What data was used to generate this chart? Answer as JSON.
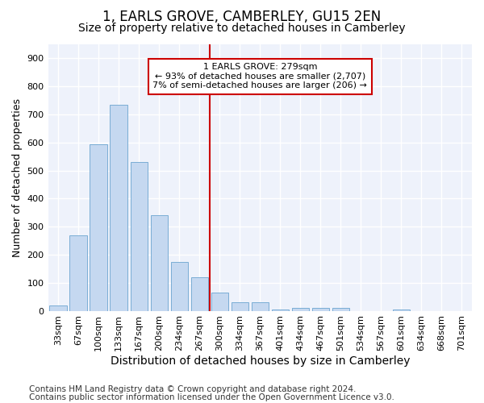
{
  "title": "1, EARLS GROVE, CAMBERLEY, GU15 2EN",
  "subtitle": "Size of property relative to detached houses in Camberley",
  "xlabel": "Distribution of detached houses by size in Camberley",
  "ylabel": "Number of detached properties",
  "categories": [
    "33sqm",
    "67sqm",
    "100sqm",
    "133sqm",
    "167sqm",
    "200sqm",
    "234sqm",
    "267sqm",
    "300sqm",
    "334sqm",
    "367sqm",
    "401sqm",
    "434sqm",
    "467sqm",
    "501sqm",
    "534sqm",
    "567sqm",
    "601sqm",
    "634sqm",
    "668sqm",
    "701sqm"
  ],
  "values": [
    18,
    270,
    595,
    735,
    530,
    340,
    175,
    120,
    65,
    30,
    30,
    5,
    10,
    10,
    10,
    0,
    0,
    5,
    0,
    0,
    0
  ],
  "bar_color": "#c5d8f0",
  "bar_edge_color": "#7aadd4",
  "vline_x_index": 7.5,
  "vline_color": "#cc0000",
  "annotation_line1": "1 EARLS GROVE: 279sqm",
  "annotation_line2": "← 93% of detached houses are smaller (2,707)",
  "annotation_line3": "7% of semi-detached houses are larger (206) →",
  "annotation_box_facecolor": "#ffffff",
  "annotation_box_edgecolor": "#cc0000",
  "ylim": [
    0,
    950
  ],
  "yticks": [
    0,
    100,
    200,
    300,
    400,
    500,
    600,
    700,
    800,
    900
  ],
  "footer1": "Contains HM Land Registry data © Crown copyright and database right 2024.",
  "footer2": "Contains public sector information licensed under the Open Government Licence v3.0.",
  "bg_color": "#ffffff",
  "plot_bg_color": "#eef2fb",
  "grid_color": "#ffffff",
  "title_fontsize": 12,
  "subtitle_fontsize": 10,
  "xlabel_fontsize": 10,
  "ylabel_fontsize": 9,
  "tick_fontsize": 8,
  "annot_fontsize": 8,
  "footer_fontsize": 7.5
}
